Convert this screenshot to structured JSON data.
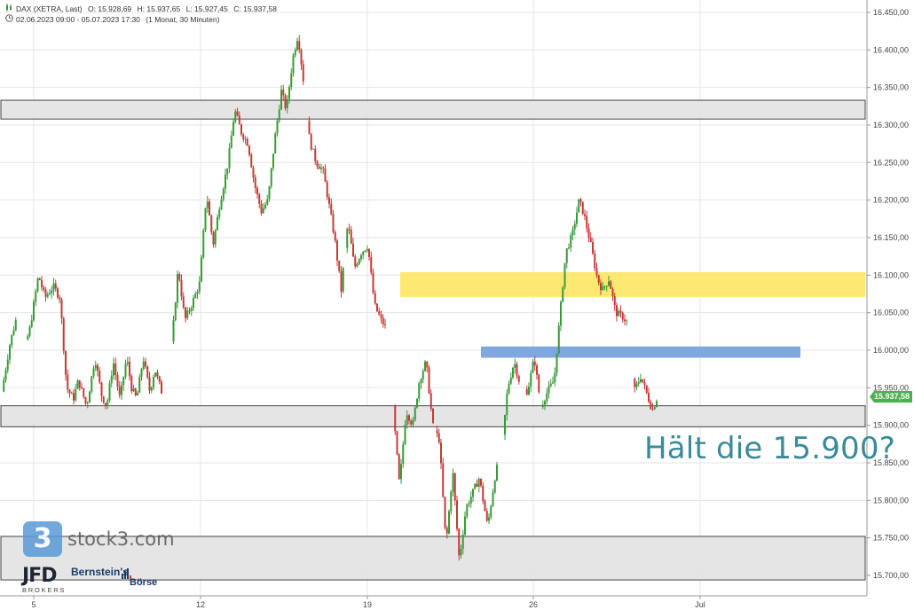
{
  "header": {
    "instrument_line": {
      "name": "DAX (XETRA, Last)",
      "open": "O: 15.928,69",
      "high": "H: 15.937,65",
      "low": "L: 15.927,45",
      "close": "C: 15.937,58"
    },
    "range_line": {
      "range": "02.06.2023 09:00 - 05.07.2023 17:30",
      "interval": "(1 Monat, 30 Minuten)"
    },
    "icon_names": [
      "candlestick-icon",
      "clock-icon"
    ]
  },
  "annotation": "Hält die 15.900?",
  "branding": {
    "stock3_mark": "3",
    "stock3_text": "stock3.com",
    "jfd": "JFD",
    "jfd_sub": "BROKERS",
    "bernstein_line1": "Bernstein's",
    "bernstein_line2": "Börse"
  },
  "chart_data": {
    "type": "candlestick",
    "title": "",
    "xlabel": "",
    "ylabel": "",
    "ylim": [
      15680,
      16480
    ],
    "y_ticks": [
      {
        "value": 16450,
        "label": "16.450,00"
      },
      {
        "value": 16400,
        "label": "16.400,00"
      },
      {
        "value": 16350,
        "label": "16.350,00"
      },
      {
        "value": 16300,
        "label": "16.300,00"
      },
      {
        "value": 16250,
        "label": "16.250,00"
      },
      {
        "value": 16200,
        "label": "16.200,00"
      },
      {
        "value": 16150,
        "label": "16.150,00"
      },
      {
        "value": 16100,
        "label": "16.100,00"
      },
      {
        "value": 16050,
        "label": "16.050,00"
      },
      {
        "value": 16000,
        "label": "16.000,00"
      },
      {
        "value": 15950,
        "label": "15.950,00"
      },
      {
        "value": 15900,
        "label": "15.900,00"
      },
      {
        "value": 15850,
        "label": "15.850,00"
      },
      {
        "value": 15800,
        "label": "15.800,00"
      },
      {
        "value": 15750,
        "label": "15.750,00"
      },
      {
        "value": 15700,
        "label": "15.700,00"
      }
    ],
    "x_ticks": [
      {
        "date": "2023-06-05",
        "label": "5"
      },
      {
        "date": "2023-06-12",
        "label": "12"
      },
      {
        "date": "2023-06-19",
        "label": "19"
      },
      {
        "date": "2023-06-26",
        "label": "26"
      },
      {
        "date": "2023-07-03",
        "label": "Jul"
      }
    ],
    "last_price": {
      "value": 15937.58,
      "label": "15.937,58",
      "color": "#4caf50"
    },
    "colors": {
      "up": "#3a9a3a",
      "down": "#c83838",
      "grid": "#e6e6e6"
    },
    "grid": true,
    "zones": [
      {
        "color": "#e0e0e0",
        "y_from": 16308,
        "y_to": 16333,
        "x_from": "2023-06-02",
        "x_to": "2023-07-05"
      },
      {
        "color": "#e0e0e0",
        "y_from": 15898,
        "y_to": 15926,
        "x_from": "2023-06-02",
        "x_to": "2023-07-05"
      },
      {
        "color": "#e0e0e0",
        "y_from": 15694,
        "y_to": 15752,
        "x_from": "2023-06-02",
        "x_to": "2023-07-05"
      },
      {
        "color": "#fde872",
        "y_from": 16071,
        "y_to": 16104,
        "x_from": "2023-06-20",
        "x_to": "2023-07-05"
      },
      {
        "color": "#80a8e0",
        "y_from": 15990,
        "y_to": 16005,
        "x_from": "2023-06-23",
        "x_to": "2023-07-04"
      }
    ],
    "path": [
      [
        0,
        15945
      ],
      [
        0.25,
        16010
      ],
      [
        0.45,
        16045
      ],
      [
        0.6,
        15990
      ],
      [
        0.85,
        16030
      ],
      [
        1.1,
        16100
      ],
      [
        1.3,
        16070
      ],
      [
        1.55,
        16085
      ],
      [
        1.75,
        16070
      ],
      [
        1.95,
        15950
      ],
      [
        2.15,
        15935
      ],
      [
        2.3,
        15960
      ],
      [
        2.55,
        15925
      ],
      [
        2.8,
        15990
      ],
      [
        3.0,
        15940
      ],
      [
        3.15,
        15925
      ],
      [
        3.35,
        15985
      ],
      [
        3.55,
        15935
      ],
      [
        3.75,
        15990
      ],
      [
        3.9,
        15950
      ],
      [
        4.05,
        15935
      ],
      [
        4.25,
        15990
      ],
      [
        4.45,
        15945
      ],
      [
        4.6,
        15975
      ],
      [
        4.8,
        15945
      ],
      [
        4.95,
        15940
      ],
      [
        5.15,
        16030
      ],
      [
        5.3,
        16110
      ],
      [
        5.5,
        16040
      ],
      [
        5.7,
        16060
      ],
      [
        5.95,
        16090
      ],
      [
        6.15,
        16210
      ],
      [
        6.35,
        16140
      ],
      [
        6.55,
        16195
      ],
      [
        6.8,
        16250
      ],
      [
        7.0,
        16320
      ],
      [
        7.2,
        16290
      ],
      [
        7.4,
        16275
      ],
      [
        7.6,
        16220
      ],
      [
        7.8,
        16185
      ],
      [
        8.0,
        16200
      ],
      [
        8.2,
        16280
      ],
      [
        8.4,
        16345
      ],
      [
        8.55,
        16320
      ],
      [
        8.75,
        16390
      ],
      [
        8.9,
        16420
      ],
      [
        9.05,
        16365
      ],
      [
        9.25,
        16280
      ],
      [
        9.45,
        16250
      ],
      [
        9.65,
        16240
      ],
      [
        9.85,
        16190
      ],
      [
        10.0,
        16150
      ],
      [
        10.2,
        16080
      ],
      [
        10.4,
        16170
      ],
      [
        10.6,
        16110
      ],
      [
        10.8,
        16130
      ],
      [
        11.0,
        16140
      ],
      [
        11.2,
        16060
      ],
      [
        11.4,
        16040
      ],
      [
        11.55,
        16030
      ],
      [
        11.8,
        15900
      ],
      [
        11.95,
        15820
      ],
      [
        12.15,
        15920
      ],
      [
        12.35,
        15900
      ],
      [
        12.55,
        15960
      ],
      [
        12.75,
        15985
      ],
      [
        12.95,
        15900
      ],
      [
        13.15,
        15880
      ],
      [
        13.35,
        15740
      ],
      [
        13.55,
        15840
      ],
      [
        13.75,
        15720
      ],
      [
        13.95,
        15790
      ],
      [
        14.15,
        15810
      ],
      [
        14.35,
        15830
      ],
      [
        14.6,
        15765
      ],
      [
        14.85,
        15840
      ],
      [
        15.0,
        15855
      ],
      [
        15.2,
        15950
      ],
      [
        15.4,
        15985
      ],
      [
        15.6,
        15950
      ],
      [
        15.8,
        15945
      ],
      [
        16.0,
        15990
      ],
      [
        16.2,
        15925
      ],
      [
        16.4,
        15945
      ],
      [
        16.6,
        15960
      ],
      [
        16.8,
        16060
      ],
      [
        16.95,
        16130
      ],
      [
        17.15,
        16155
      ],
      [
        17.35,
        16200
      ],
      [
        17.5,
        16180
      ],
      [
        17.7,
        16140
      ],
      [
        17.9,
        16095
      ],
      [
        18.05,
        16080
      ],
      [
        18.25,
        16095
      ],
      [
        18.45,
        16050
      ],
      [
        18.65,
        16045
      ],
      [
        18.8,
        16037
      ],
      [
        19.0,
        15945
      ],
      [
        19.2,
        15965
      ],
      [
        19.4,
        15940
      ],
      [
        19.55,
        15920
      ],
      [
        19.7,
        15937.58
      ]
    ],
    "sessions": [
      {
        "date": "2023-06-02",
        "x_from": 0,
        "x_to": 0.42,
        "label": ""
      },
      {
        "date": "2023-06-05",
        "x_from": 0.75,
        "x_to": 1.45,
        "label": ""
      },
      {
        "date": "2023-06-06",
        "x_from": 1.45,
        "x_to": 2.2,
        "label": ""
      },
      {
        "date": "2023-06-07",
        "x_from": 2.2,
        "x_to": 3.0,
        "label": ""
      },
      {
        "date": "2023-06-08",
        "x_from": 3.0,
        "x_to": 3.8,
        "label": ""
      },
      {
        "date": "2023-06-09",
        "x_from": 3.8,
        "x_to": 4.8,
        "label": ""
      }
    ]
  }
}
